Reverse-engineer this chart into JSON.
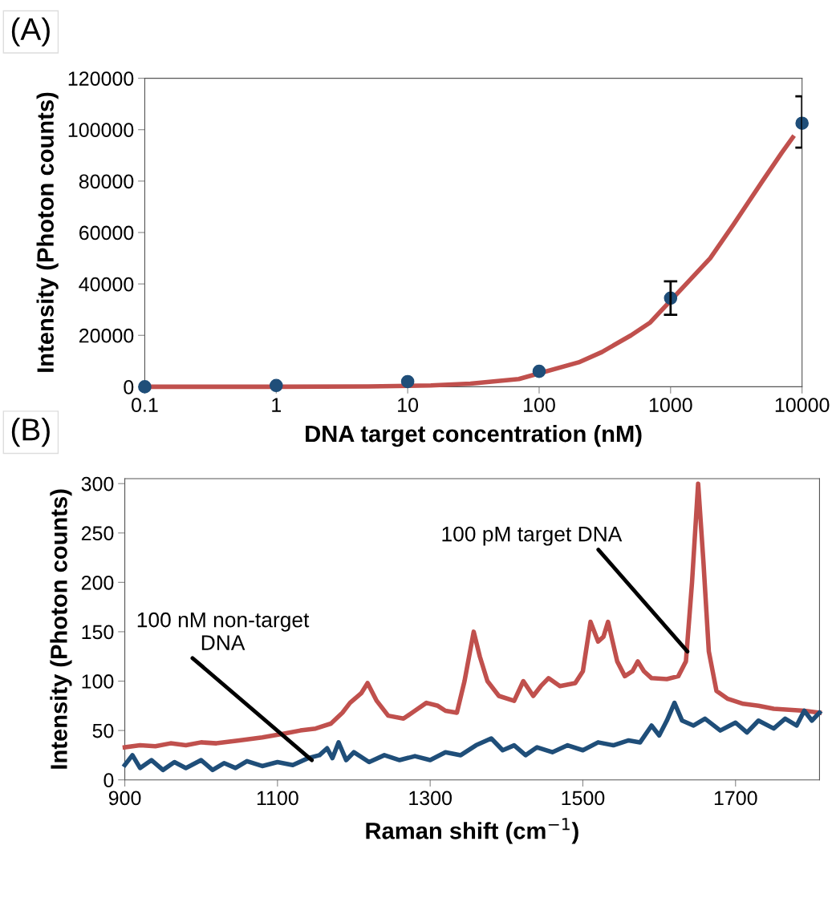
{
  "chart_data": [
    {
      "type": "scatter",
      "title": "(A)",
      "xlabel": "DNA target concentration (nM)",
      "ylabel": "Intensity (Photon counts)",
      "log": "x",
      "xlim": [
        0.1,
        10000
      ],
      "xticks": [
        0.1,
        1,
        10,
        100,
        1000,
        10000
      ],
      "ylim": [
        0,
        120000
      ],
      "yticks": [
        0,
        20000,
        40000,
        60000,
        80000,
        100000,
        120000
      ],
      "grid": false,
      "legend": false,
      "series": [
        {
          "type": "scatter",
          "color": "#1f4e79",
          "marker": "circle",
          "x": [
            0.1,
            1,
            10,
            100,
            1000,
            10000
          ],
          "values": [
            0,
            500,
            2000,
            6000,
            34500,
            102500
          ],
          "errors": [
            null,
            null,
            null,
            null,
            [
              28000,
              41000
            ],
            [
              93000,
              113000
            ]
          ]
        },
        {
          "type": "line",
          "color": "#c0504d",
          "marker": "none",
          "line_style": "solid",
          "x": [
            0.1,
            1,
            5,
            15,
            30,
            70,
            200,
            300,
            500,
            700,
            2000,
            3000,
            5000,
            7000,
            8500
          ],
          "values": [
            0,
            0,
            100,
            500,
            1200,
            3000,
            9500,
            13500,
            20000,
            25000,
            50000,
            63000,
            80000,
            91000,
            97000
          ]
        }
      ]
    },
    {
      "type": "line",
      "title": "(B)",
      "xlabel": "Raman shift (cm$^{−1}$)",
      "ylabel": "Intensity (Photon counts)",
      "xlim": [
        900,
        1810
      ],
      "xticks": [
        900,
        1100,
        1300,
        1500,
        1700
      ],
      "ylim": [
        0,
        305
      ],
      "yticks": [
        0,
        50,
        100,
        150,
        200,
        250,
        300
      ],
      "grid": false,
      "legend": false,
      "marker": "none",
      "line_style": "solid",
      "annotations": [
        {
          "text": "100 pM target DNA",
          "x": 1637,
          "y": 130
        },
        {
          "text": "100 nM non-target\nDNA",
          "x": 1145,
          "y": 20
        }
      ],
      "series": [
        {
          "color": "#c0504d",
          "x": [
            900,
            920,
            940,
            960,
            980,
            1000,
            1020,
            1050,
            1080,
            1110,
            1130,
            1150,
            1170,
            1185,
            1195,
            1210,
            1218,
            1230,
            1245,
            1265,
            1280,
            1295,
            1310,
            1320,
            1335,
            1345,
            1357,
            1365,
            1375,
            1390,
            1410,
            1422,
            1435,
            1445,
            1455,
            1470,
            1490,
            1500,
            1510,
            1520,
            1527,
            1533,
            1545,
            1555,
            1565,
            1572,
            1580,
            1590,
            1610,
            1625,
            1635,
            1643,
            1651,
            1658,
            1665,
            1675,
            1690,
            1710,
            1730,
            1750,
            1770,
            1790,
            1810
          ],
          "values": [
            33,
            35,
            34,
            37,
            35,
            38,
            37,
            40,
            43,
            47,
            50,
            52,
            57,
            68,
            78,
            88,
            98,
            80,
            65,
            62,
            70,
            78,
            75,
            70,
            68,
            100,
            150,
            125,
            100,
            85,
            80,
            100,
            85,
            95,
            103,
            95,
            98,
            110,
            160,
            140,
            145,
            160,
            120,
            105,
            110,
            120,
            110,
            103,
            102,
            105,
            120,
            200,
            300,
            220,
            130,
            90,
            82,
            77,
            75,
            72,
            71,
            70,
            68
          ]
        },
        {
          "color": "#1f4e79",
          "x": [
            900,
            910,
            920,
            935,
            950,
            965,
            980,
            1000,
            1015,
            1030,
            1045,
            1060,
            1080,
            1100,
            1120,
            1140,
            1155,
            1165,
            1172,
            1180,
            1190,
            1200,
            1220,
            1240,
            1260,
            1280,
            1300,
            1320,
            1340,
            1360,
            1380,
            1395,
            1410,
            1425,
            1440,
            1460,
            1480,
            1500,
            1520,
            1540,
            1560,
            1575,
            1590,
            1600,
            1610,
            1620,
            1630,
            1645,
            1660,
            1680,
            1700,
            1715,
            1730,
            1750,
            1765,
            1780,
            1790,
            1800,
            1810
          ],
          "values": [
            15,
            25,
            12,
            20,
            10,
            18,
            12,
            20,
            10,
            17,
            12,
            19,
            14,
            18,
            15,
            22,
            25,
            32,
            22,
            38,
            20,
            28,
            18,
            25,
            20,
            24,
            20,
            28,
            25,
            35,
            42,
            30,
            35,
            25,
            33,
            28,
            35,
            30,
            38,
            35,
            40,
            38,
            55,
            45,
            60,
            78,
            60,
            55,
            62,
            50,
            58,
            48,
            60,
            52,
            62,
            55,
            70,
            60,
            68
          ]
        }
      ]
    }
  ]
}
